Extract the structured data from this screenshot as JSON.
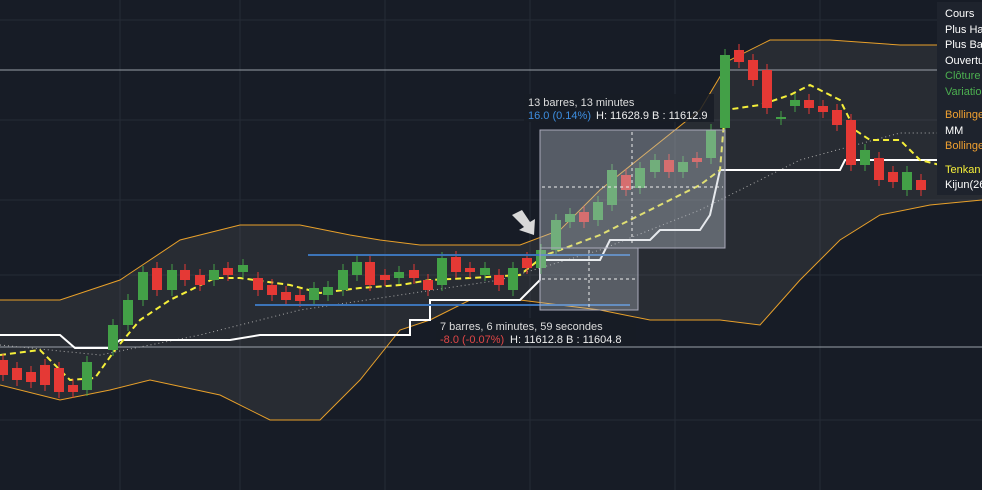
{
  "annotations": [
    {
      "title": "13 barres, 13 minutes",
      "change": "16.0 (0.14%)",
      "range": "H: 11628.9 B : 11612.9"
    },
    {
      "title": "7 barres, 6 minutes, 59 secondes",
      "change": "-8.0 (-0.07%)",
      "range": "H: 11612.8 B : 11604.8"
    }
  ],
  "legend": [
    "Cours",
    "Plus Ha",
    "Plus Bas",
    "Ouvertu",
    "Clôture",
    "Variatio",
    "Bollinge",
    "MM",
    "Bollinge",
    "Tenkan",
    "Kijun(26"
  ]
}
